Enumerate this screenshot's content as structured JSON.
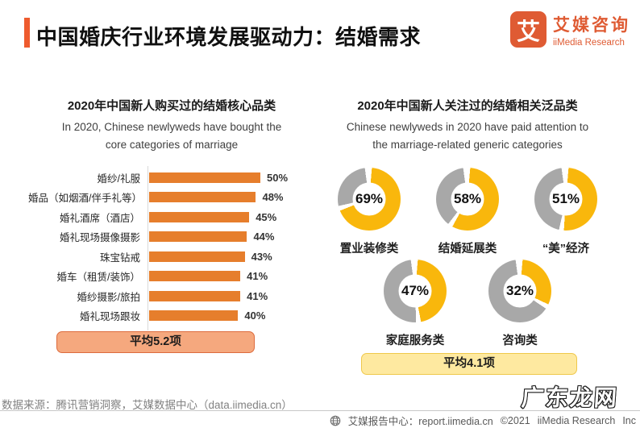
{
  "header": {
    "title": "中国婚庆行业环境发展驱动力：结婚需求",
    "logo": {
      "glyph": "艾",
      "name_cn": "艾媒咨询",
      "name_en": "iiMedia Research"
    }
  },
  "left_chart": {
    "title_cn": "2020年中国新人购买过的结婚核心品类",
    "title_en_1": "In 2020, Chinese newlyweds have bought the",
    "title_en_2": "core categories of marriage",
    "average_badge": "平均5.2项"
  },
  "right_chart": {
    "title_cn": "2020年中国新人关注过的结婚相关泛品类",
    "title_en_1": "Chinese newlyweds in 2020 have paid attention to",
    "title_en_2": "the marriage-related generic categories",
    "average_badge": "平均4.1项"
  },
  "chart_data": [
    {
      "type": "bar",
      "orientation": "horizontal",
      "title": "2020年中国新人购买过的结婚核心品类",
      "categories": [
        "婚纱/礼服",
        "婚品（如烟酒/伴手礼等）",
        "婚礼酒席（酒店）",
        "婚礼现场摄像摄影",
        "珠宝钻戒",
        "婚车（租赁/装饰）",
        "婚纱摄影/旅拍",
        "婚礼现场跟妆"
      ],
      "values": [
        50,
        48,
        45,
        44,
        43,
        41,
        41,
        40
      ],
      "unit": "%",
      "xlim": [
        0,
        50
      ],
      "bar_color": "#E67E2C",
      "grid": false,
      "average_note": "平均5.2项"
    },
    {
      "type": "pie",
      "subtype": "donut",
      "title": "2020年中国新人关注过的结婚相关泛品类",
      "categories": [
        "置业装修类",
        "结婚延展类",
        "“美”经济",
        "家庭服务类",
        "咨询类"
      ],
      "values": [
        69,
        58,
        51,
        47,
        32
      ],
      "unit": "%",
      "filled_color": "#F9B70C",
      "rest_color": "#A8A8A8",
      "average_note": "平均4.1项"
    }
  ],
  "footer": {
    "source": "数据来源：腾讯营销洞察，艾媒数据中心（data.iimedia.cn）",
    "report_center": "艾媒报告中心：report.iimedia.cn",
    "copyright_year": "©2021",
    "copyright_org": "iiMedia Research",
    "copyright_suffix": "Inc",
    "watermark": "广东龙网"
  },
  "colors": {
    "accent_orange": "#EE5B2E",
    "logo_orange": "#DF5B33",
    "bar_orange": "#E67E2C",
    "donut_yellow": "#F9B70C",
    "donut_gray": "#A8A8A8",
    "badge_left_bg": "#F5A87E",
    "badge_left_border": "#DD6B3D",
    "badge_right_bg": "#FEE9A0",
    "badge_right_border": "#EFC84B"
  }
}
